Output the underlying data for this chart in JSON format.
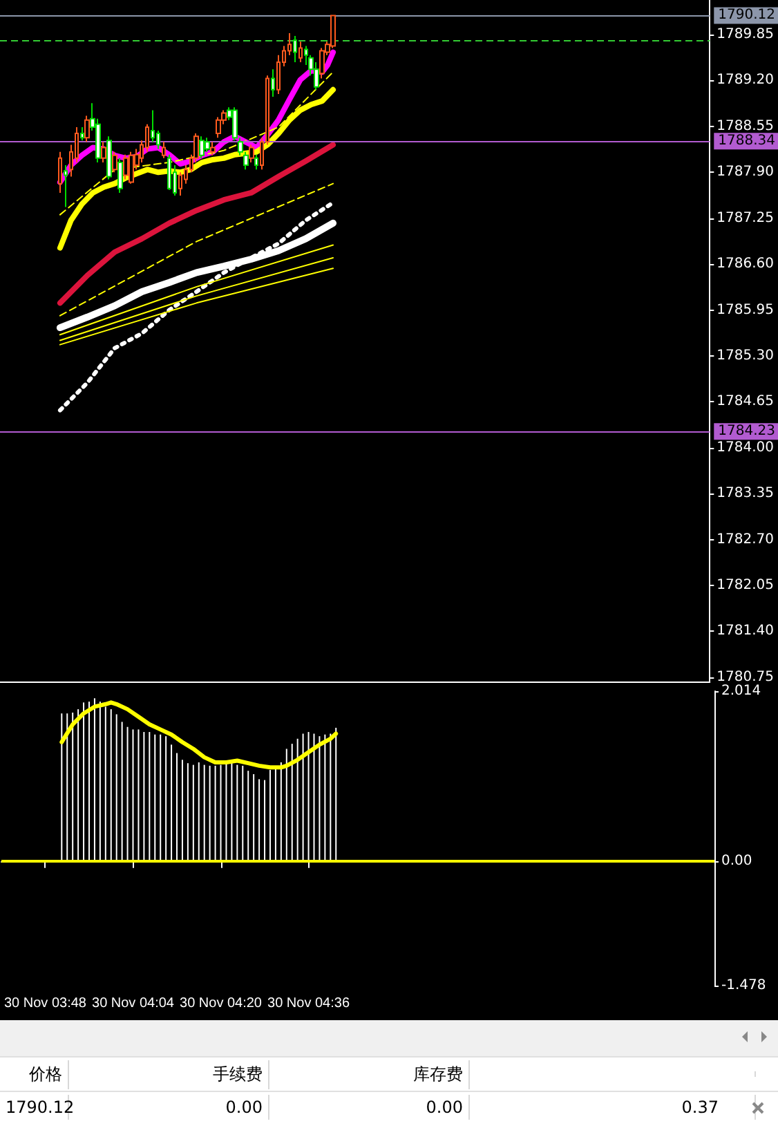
{
  "chart_data": [
    {
      "type": "candlestick",
      "tick_labels": "y",
      "marker": "none",
      "x": [
        "--11-30T03:51",
        "--11-30T03:52",
        "--11-30T03:53",
        "--11-30T03:54",
        "--11-30T03:55",
        "--11-30T03:56",
        "--11-30T03:57",
        "--11-30T03:58",
        "--11-30T03:59",
        "--11-30T04:00",
        "--11-30T04:01",
        "--11-30T04:02",
        "--11-30T04:03",
        "--11-30T04:04",
        "--11-30T04:05",
        "--11-30T04:06",
        "--11-30T04:07",
        "--11-30T04:08",
        "--11-30T04:09",
        "--11-30T04:10",
        "--11-30T04:11",
        "--11-30T04:12",
        "--11-30T04:13",
        "--11-30T04:14",
        "--11-30T04:15",
        "--11-30T04:16",
        "--11-30T04:17",
        "--11-30T04:18",
        "--11-30T04:19",
        "--11-30T04:20",
        "--11-30T04:21",
        "--11-30T04:22",
        "--11-30T04:23",
        "--11-30T04:24",
        "--11-30T04:25",
        "--11-30T04:26",
        "--11-30T04:27",
        "--11-30T04:28",
        "--11-30T04:29",
        "--11-30T04:30",
        "--11-30T04:31",
        "--11-30T04:32",
        "--11-30T04:33",
        "--11-30T04:34",
        "--11-30T04:35",
        "--11-30T04:36",
        "--11-30T04:37",
        "--11-30T04:38",
        "--11-30T04:39",
        "--11-30T04:40",
        "--11-30T04:41"
      ],
      "xlim": [
        "--11-30T03:40",
        "--11-30T05:50"
      ],
      "ylim": [
        1780.69,
        1790.34
      ],
      "yticks": [
        {
          "value": 1780.75,
          "label": "1780.75"
        },
        {
          "value": 1781.4,
          "label": "1781.40"
        },
        {
          "value": 1782.05,
          "label": "1782.05"
        },
        {
          "value": 1782.7,
          "label": "1782.70"
        },
        {
          "value": 1783.35,
          "label": "1783.35"
        },
        {
          "value": 1784,
          "label": "1784.00"
        },
        {
          "value": 1784.65,
          "label": "1784.65"
        },
        {
          "value": 1785.3,
          "label": "1785.30"
        },
        {
          "value": 1785.95,
          "label": "1785.95"
        },
        {
          "value": 1786.6,
          "label": "1786.60"
        },
        {
          "value": 1787.25,
          "label": "1787.25"
        },
        {
          "value": 1787.9,
          "label": "1787.90"
        },
        {
          "value": 1788.55,
          "label": "1788.55"
        },
        {
          "value": 1789.2,
          "label": "1789.20"
        },
        {
          "value": 1789.85,
          "label": "1789.85"
        }
      ],
      "ref_lines": [
        {
          "axis": "y",
          "value": 1790.12,
          "label": "1790.12",
          "color": "#8c96aa"
        },
        {
          "axis": "y",
          "value": 1789.77,
          "color": "#33cc33",
          "line_style": "dashed"
        },
        {
          "axis": "y",
          "value": 1788.34,
          "label": "1788.34",
          "color": "#b25bd0"
        },
        {
          "axis": "y",
          "value": 1784.23,
          "label": "1784.23",
          "color": "#b25bd0"
        }
      ],
      "series": [
        {
          "type": "candlestick",
          "ohlc": [
            [
              1787.74,
              1788.19,
              1787.61,
              1788.1
            ],
            [
              1787.92,
              1788.0,
              1787.41,
              1787.86
            ],
            [
              1787.94,
              1788.29,
              1787.84,
              1788.19
            ],
            [
              1788.1,
              1788.54,
              1788.04,
              1788.45
            ],
            [
              1788.45,
              1788.54,
              1788.35,
              1788.39
            ],
            [
              1788.39,
              1788.7,
              1788.33,
              1788.64
            ],
            [
              1788.66,
              1788.88,
              1788.49,
              1788.54
            ],
            [
              1788.58,
              1788.66,
              1788.04,
              1788.1
            ],
            [
              1788.1,
              1788.33,
              1788.04,
              1788.25
            ],
            [
              1788.35,
              1788.41,
              1787.8,
              1787.84
            ],
            [
              1787.94,
              1788.19,
              1787.9,
              1788.14
            ],
            [
              1788.04,
              1788.1,
              1787.61,
              1787.67
            ],
            [
              1787.86,
              1788.15,
              1787.8,
              1788.1
            ],
            [
              1787.76,
              1788.19,
              1787.74,
              1788.14
            ],
            [
              1788.0,
              1788.23,
              1787.94,
              1788.15
            ],
            [
              1788.1,
              1788.35,
              1788.04,
              1788.29
            ],
            [
              1788.25,
              1788.58,
              1788.19,
              1788.54
            ],
            [
              1788.49,
              1788.78,
              1788.33,
              1788.39
            ],
            [
              1788.45,
              1788.49,
              1788.23,
              1788.29
            ],
            [
              1788.14,
              1788.33,
              1788.1,
              1788.25
            ],
            [
              1788.1,
              1788.15,
              1787.65,
              1787.67
            ],
            [
              1787.9,
              1788.0,
              1787.57,
              1787.61
            ],
            [
              1787.67,
              1787.9,
              1787.57,
              1787.86
            ],
            [
              1787.8,
              1788.0,
              1787.74,
              1787.94
            ],
            [
              1787.94,
              1788.15,
              1787.9,
              1788.1
            ],
            [
              1788.1,
              1788.45,
              1788.04,
              1788.41
            ],
            [
              1788.35,
              1788.41,
              1788.1,
              1788.14
            ],
            [
              1788.33,
              1788.39,
              1788.19,
              1788.23
            ],
            [
              1788.19,
              1788.33,
              1788.14,
              1788.25
            ],
            [
              1788.45,
              1788.68,
              1788.39,
              1788.64
            ],
            [
              1788.64,
              1788.78,
              1788.58,
              1788.74
            ],
            [
              1788.78,
              1788.82,
              1788.64,
              1788.68
            ],
            [
              1788.78,
              1788.82,
              1788.35,
              1788.39
            ],
            [
              1788.33,
              1788.39,
              1788.14,
              1788.19
            ],
            [
              1788.14,
              1788.19,
              1787.94,
              1788.0
            ],
            [
              1788.1,
              1788.29,
              1788.04,
              1788.25
            ],
            [
              1788.1,
              1788.15,
              1787.94,
              1788.0
            ],
            [
              1788.0,
              1788.39,
              1787.94,
              1788.33
            ],
            [
              1788.33,
              1789.27,
              1788.29,
              1789.23
            ],
            [
              1789.23,
              1789.36,
              1788.97,
              1789.07
            ],
            [
              1789.07,
              1789.56,
              1789.01,
              1789.46
            ],
            [
              1789.46,
              1789.69,
              1789.4,
              1789.62
            ],
            [
              1789.62,
              1789.87,
              1789.56,
              1789.71
            ],
            [
              1789.77,
              1789.83,
              1789.46,
              1789.6
            ],
            [
              1789.52,
              1789.75,
              1789.46,
              1789.66
            ],
            [
              1789.64,
              1789.69,
              1789.42,
              1789.56
            ],
            [
              1789.52,
              1789.56,
              1789.27,
              1789.36
            ],
            [
              1789.36,
              1789.46,
              1789.07,
              1789.11
            ],
            [
              1789.3,
              1789.66,
              1789.23,
              1789.62
            ],
            [
              1789.6,
              1789.75,
              1789.56,
              1789.71
            ],
            [
              1789.69,
              1790.12,
              1789.66,
              1790.12
            ]
          ]
        },
        {
          "type": "line",
          "color": "#ff00ff",
          "x": [
            "--11-30T03:51",
            "--11-30T03:53",
            "--11-30T03:55",
            "--11-30T03:57",
            "--11-30T03:59",
            "--11-30T04:01",
            "--11-30T04:03",
            "--11-30T04:05",
            "--11-30T04:07",
            "--11-30T04:09",
            "--11-30T04:11",
            "--11-30T04:13",
            "--11-30T04:15",
            "--11-30T04:17",
            "--11-30T04:19",
            "--11-30T04:21",
            "--11-30T04:23",
            "--11-30T04:25",
            "--11-30T04:27",
            "--11-30T04:29",
            "--11-30T04:31",
            "--11-30T04:33",
            "--11-30T04:35",
            "--11-30T04:37",
            "--11-30T04:39",
            "--11-30T04:40",
            "--11-30T04:41"
          ],
          "values": [
            1787.76,
            1788.0,
            1788.14,
            1788.25,
            1788.23,
            1788.14,
            1788.1,
            1788.12,
            1788.23,
            1788.25,
            1788.15,
            1788.02,
            1788.06,
            1788.14,
            1788.19,
            1788.33,
            1788.41,
            1788.33,
            1788.25,
            1788.43,
            1788.64,
            1788.93,
            1789.21,
            1789.34,
            1789.32,
            1789.42,
            1789.6
          ]
        },
        {
          "type": "line",
          "color": "#ffff00",
          "x": [
            "--11-30T03:51",
            "--11-30T03:53",
            "--11-30T03:55",
            "--11-30T03:57",
            "--11-30T03:59",
            "--11-30T04:01",
            "--11-30T04:03",
            "--11-30T04:05",
            "--11-30T04:07",
            "--11-30T04:09",
            "--11-30T04:11",
            "--11-30T04:13",
            "--11-30T04:15",
            "--11-30T04:17",
            "--11-30T04:19",
            "--11-30T04:21",
            "--11-30T04:23",
            "--11-30T04:25",
            "--11-30T04:27",
            "--11-30T04:29",
            "--11-30T04:31",
            "--11-30T04:33",
            "--11-30T04:35",
            "--11-30T04:37",
            "--11-30T04:39",
            "--11-30T04:41"
          ],
          "values": [
            1786.83,
            1787.22,
            1787.45,
            1787.61,
            1787.69,
            1787.74,
            1787.82,
            1787.88,
            1787.94,
            1787.9,
            1787.92,
            1787.9,
            1787.94,
            1788.04,
            1788.08,
            1788.1,
            1788.15,
            1788.17,
            1788.19,
            1788.29,
            1788.45,
            1788.64,
            1788.78,
            1788.86,
            1788.91,
            1789.07
          ]
        },
        {
          "type": "line",
          "color": "#ffff00",
          "line_style": "dashed",
          "x": [
            "--11-30T03:51",
            "--11-30T04:01",
            "--11-30T04:11",
            "--11-30T04:21",
            "--11-30T04:31",
            "--11-30T04:41"
          ],
          "values": [
            1787.3,
            1787.94,
            1788.04,
            1788.21,
            1788.54,
            1789.32
          ]
        },
        {
          "type": "line",
          "color": "#dc143c",
          "x": [
            "--11-30T03:51",
            "--11-30T03:56",
            "--11-30T04:01",
            "--11-30T04:06",
            "--11-30T04:11",
            "--11-30T04:16",
            "--11-30T04:21",
            "--11-30T04:26",
            "--11-30T04:31",
            "--11-30T04:36",
            "--11-30T04:41"
          ],
          "values": [
            1786.05,
            1786.44,
            1786.77,
            1786.96,
            1787.18,
            1787.36,
            1787.51,
            1787.61,
            1787.84,
            1788.06,
            1788.29
          ]
        },
        {
          "type": "line",
          "color": "#ffff00",
          "line_style": "dashed",
          "x": [
            "--11-30T03:51",
            "--11-30T04:16",
            "--11-30T04:41"
          ],
          "values": [
            1785.87,
            1786.92,
            1787.74
          ]
        },
        {
          "type": "line",
          "color": "#ffffff",
          "x": [
            "--11-30T03:51",
            "--11-30T03:56",
            "--11-30T04:01",
            "--11-30T04:06",
            "--11-30T04:11",
            "--11-30T04:16",
            "--11-30T04:21",
            "--11-30T04:26",
            "--11-30T04:31",
            "--11-30T04:36",
            "--11-30T04:41"
          ],
          "values": [
            1785.7,
            1785.85,
            1786.01,
            1786.21,
            1786.34,
            1786.48,
            1786.57,
            1786.67,
            1786.79,
            1786.96,
            1787.18
          ]
        },
        {
          "type": "line",
          "color": "#ffffff",
          "line_style": "dotted",
          "x": [
            "--11-30T03:51",
            "--11-30T03:56",
            "--11-30T04:01",
            "--11-30T04:06",
            "--11-30T04:11",
            "--11-30T04:16",
            "--11-30T04:21",
            "--11-30T04:26",
            "--11-30T04:31",
            "--11-30T04:36",
            "--11-30T04:41"
          ],
          "values": [
            1784.53,
            1784.92,
            1785.41,
            1785.62,
            1785.95,
            1786.21,
            1786.48,
            1786.69,
            1786.89,
            1787.22,
            1787.47
          ]
        },
        {
          "type": "line",
          "color": "#ffff00",
          "x": [
            "--11-30T03:51",
            "--11-30T04:16",
            "--11-30T04:41"
          ],
          "values": [
            1785.6,
            1786.28,
            1786.87
          ]
        },
        {
          "type": "line",
          "color": "#ffff00",
          "x": [
            "--11-30T03:51",
            "--11-30T04:16",
            "--11-30T04:41"
          ],
          "values": [
            1785.52,
            1786.15,
            1786.69
          ]
        },
        {
          "type": "line",
          "color": "#ffff00",
          "x": [
            "--11-30T03:51",
            "--11-30T04:16",
            "--11-30T04:41"
          ],
          "values": [
            1785.46,
            1786.05,
            1786.54
          ]
        }
      ]
    },
    {
      "type": "bar",
      "marker": "none",
      "x": [
        "--11-30T03:51",
        "--11-30T03:52",
        "--11-30T03:53",
        "--11-30T03:54",
        "--11-30T03:55",
        "--11-30T03:56",
        "--11-30T03:57",
        "--11-30T03:58",
        "--11-30T03:59",
        "--11-30T04:00",
        "--11-30T04:01",
        "--11-30T04:02",
        "--11-30T04:03",
        "--11-30T04:04",
        "--11-30T04:05",
        "--11-30T04:06",
        "--11-30T04:07",
        "--11-30T04:08",
        "--11-30T04:09",
        "--11-30T04:10",
        "--11-30T04:11",
        "--11-30T04:12",
        "--11-30T04:13",
        "--11-30T04:14",
        "--11-30T04:15",
        "--11-30T04:16",
        "--11-30T04:17",
        "--11-30T04:18",
        "--11-30T04:19",
        "--11-30T04:20",
        "--11-30T04:21",
        "--11-30T04:22",
        "--11-30T04:23",
        "--11-30T04:24",
        "--11-30T04:25",
        "--11-30T04:26",
        "--11-30T04:27",
        "--11-30T04:28",
        "--11-30T04:29",
        "--11-30T04:30",
        "--11-30T04:31",
        "--11-30T04:32",
        "--11-30T04:33",
        "--11-30T04:34",
        "--11-30T04:35",
        "--11-30T04:36",
        "--11-30T04:37",
        "--11-30T04:38",
        "--11-30T04:39",
        "--11-30T04:40",
        "--11-30T04:41"
      ],
      "xlim": [
        "--11-30T03:40",
        "--11-30T05:50"
      ],
      "xticks": [
        {
          "value": "--11-30T03:48",
          "label": "30 Nov 03:48"
        },
        {
          "value": "--11-30T04:04",
          "label": "30 Nov 04:04"
        },
        {
          "value": "--11-30T04:20",
          "label": "30 Nov 04:20"
        },
        {
          "value": "--11-30T04:36",
          "label": "30 Nov 04:36"
        }
      ],
      "ylim": [
        -1.478,
        2.014
      ],
      "yticks": [
        -1.478,
        {
          "value": 0,
          "label": "0.00"
        },
        2.014
      ],
      "ref_lines": [
        {
          "axis": "y",
          "value": 0,
          "color": "#ffff00"
        }
      ],
      "series": [
        {
          "type": "bar",
          "color": "#ffffff",
          "values": [
            1.75,
            1.75,
            1.76,
            1.8,
            1.88,
            1.89,
            1.93,
            1.89,
            1.83,
            1.8,
            1.74,
            1.65,
            1.59,
            1.56,
            1.56,
            1.53,
            1.53,
            1.5,
            1.5,
            1.48,
            1.38,
            1.28,
            1.2,
            1.16,
            1.14,
            1.17,
            1.14,
            1.13,
            1.13,
            1.14,
            1.16,
            1.16,
            1.14,
            1.13,
            1.07,
            1.03,
            0.97,
            0.96,
            1.08,
            1.11,
            1.17,
            1.33,
            1.39,
            1.45,
            1.51,
            1.53,
            1.51,
            1.48,
            1.5,
            1.51,
            1.58
          ]
        },
        {
          "type": "line",
          "color": "#ffff00",
          "x": [
            "--11-30T03:51",
            "--11-30T03:53",
            "--11-30T03:55",
            "--11-30T03:57",
            "--11-30T03:59",
            "--11-30T04:00",
            "--11-30T04:01",
            "--11-30T04:03",
            "--11-30T04:05",
            "--11-30T04:07",
            "--11-30T04:09",
            "--11-30T04:11",
            "--11-30T04:13",
            "--11-30T04:15",
            "--11-30T04:17",
            "--11-30T04:19",
            "--11-30T04:21",
            "--11-30T04:23",
            "--11-30T04:25",
            "--11-30T04:27",
            "--11-30T04:29",
            "--11-30T04:31",
            "--11-30T04:32",
            "--11-30T04:34",
            "--11-30T04:36",
            "--11-30T04:38",
            "--11-30T04:40",
            "--11-30T04:41"
          ],
          "values": [
            1.41,
            1.62,
            1.75,
            1.83,
            1.86,
            1.88,
            1.86,
            1.8,
            1.71,
            1.62,
            1.56,
            1.5,
            1.41,
            1.33,
            1.23,
            1.17,
            1.17,
            1.19,
            1.16,
            1.13,
            1.11,
            1.11,
            1.13,
            1.2,
            1.29,
            1.38,
            1.45,
            1.51
          ]
        }
      ]
    },
    {
      "type": "other",
      "annotations": [
        "价格",
        "手续费",
        "库存费",
        "1790.12",
        "0.00",
        "0.00",
        "0.37"
      ]
    }
  ]
}
